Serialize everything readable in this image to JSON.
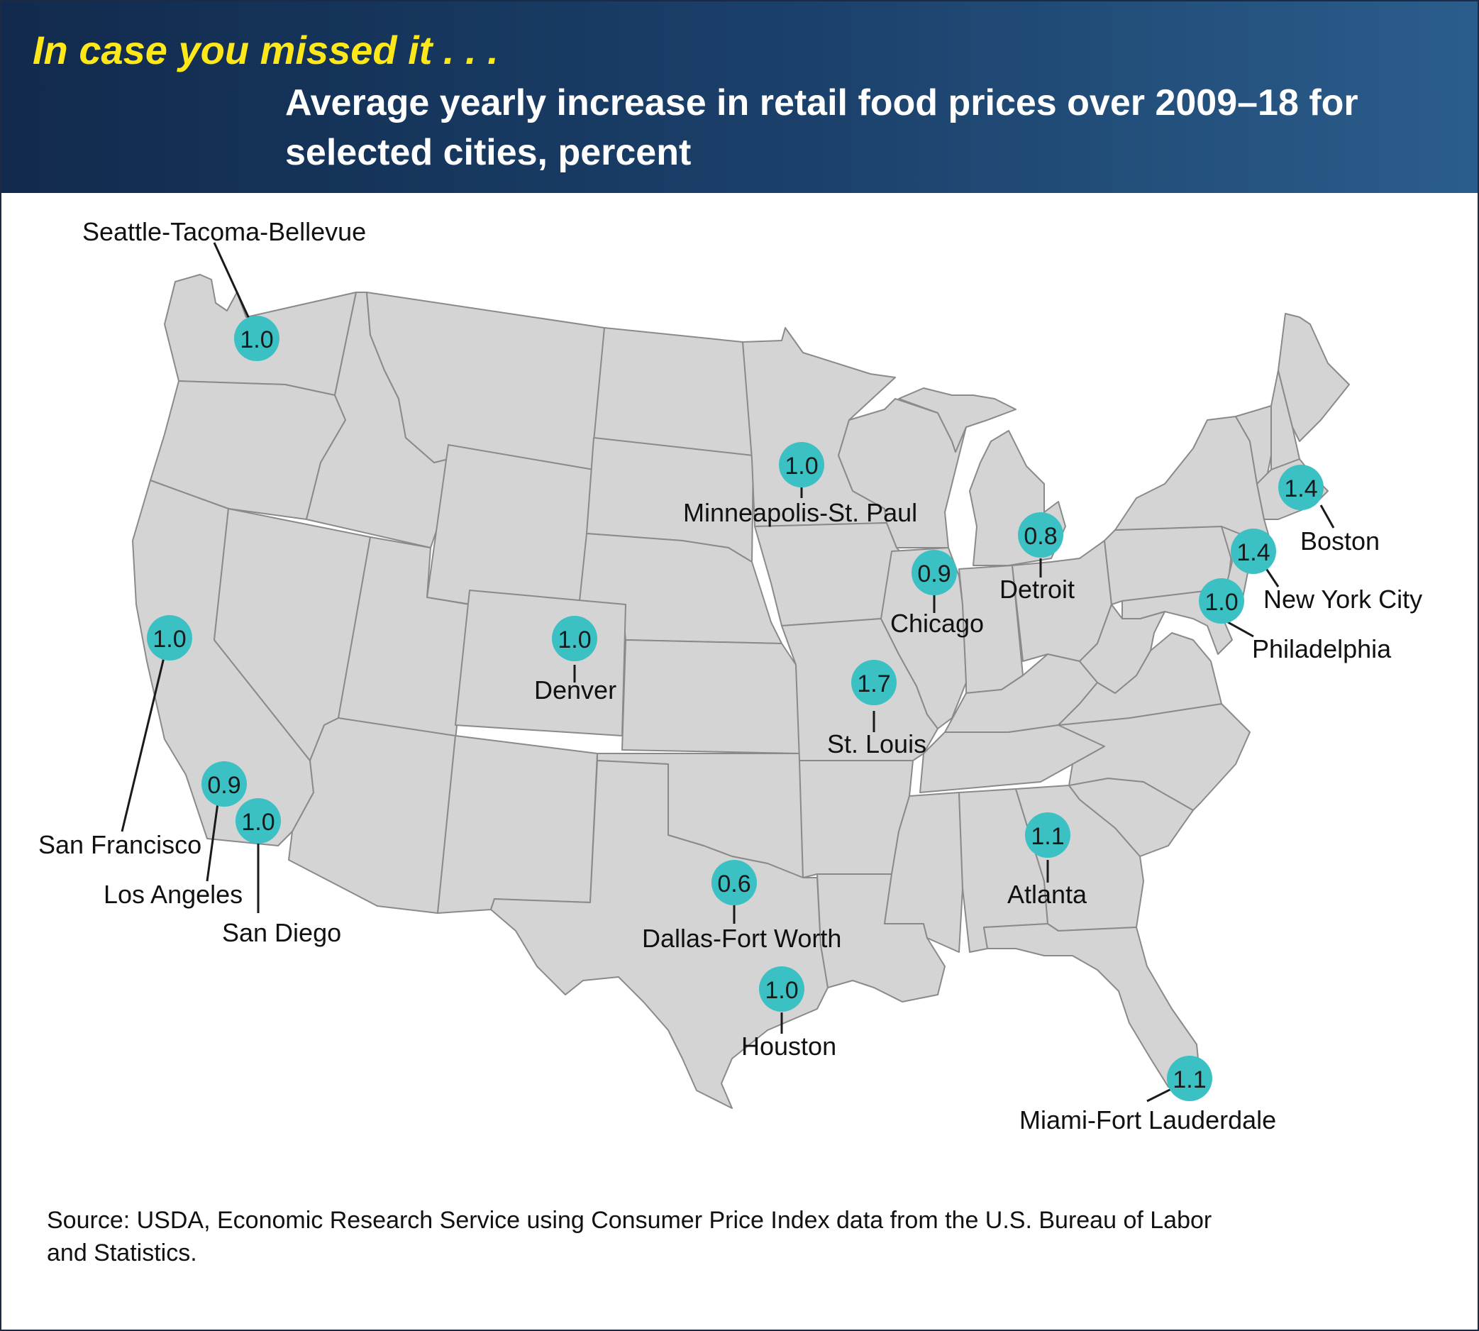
{
  "header": {
    "kicker": "In case you missed it . . .",
    "title": "Average yearly increase in retail food prices over 2009–18 for selected cities, percent"
  },
  "colors": {
    "header_bg": "#1b416b",
    "kicker": "#ffe819",
    "marker": "#3bc0c3",
    "land": "#d4d4d5",
    "border": "#8a8a8a"
  },
  "cities": [
    {
      "name": "Seattle-Tacoma-Bellevue",
      "value": "1.0"
    },
    {
      "name": "San Francisco",
      "value": "1.0"
    },
    {
      "name": "Los Angeles",
      "value": "0.9"
    },
    {
      "name": "San Diego",
      "value": "1.0"
    },
    {
      "name": "Denver",
      "value": "1.0"
    },
    {
      "name": "Minneapolis-St. Paul",
      "value": "1.0"
    },
    {
      "name": "Dallas-Fort Worth",
      "value": "0.6"
    },
    {
      "name": "Houston",
      "value": "1.0"
    },
    {
      "name": "St. Louis",
      "value": "1.7"
    },
    {
      "name": "Chicago",
      "value": "0.9"
    },
    {
      "name": "Detroit",
      "value": "0.8"
    },
    {
      "name": "Atlanta",
      "value": "1.1"
    },
    {
      "name": "Miami-Fort Lauderdale",
      "value": "1.1"
    },
    {
      "name": "Philadelphia",
      "value": "1.0"
    },
    {
      "name": "New York City",
      "value": "1.4"
    },
    {
      "name": "Boston",
      "value": "1.4"
    }
  ],
  "source": {
    "text": "Source: USDA, Economic Research Service using Consumer Price Index data from the U.S. Bureau of Labor and Statistics."
  }
}
